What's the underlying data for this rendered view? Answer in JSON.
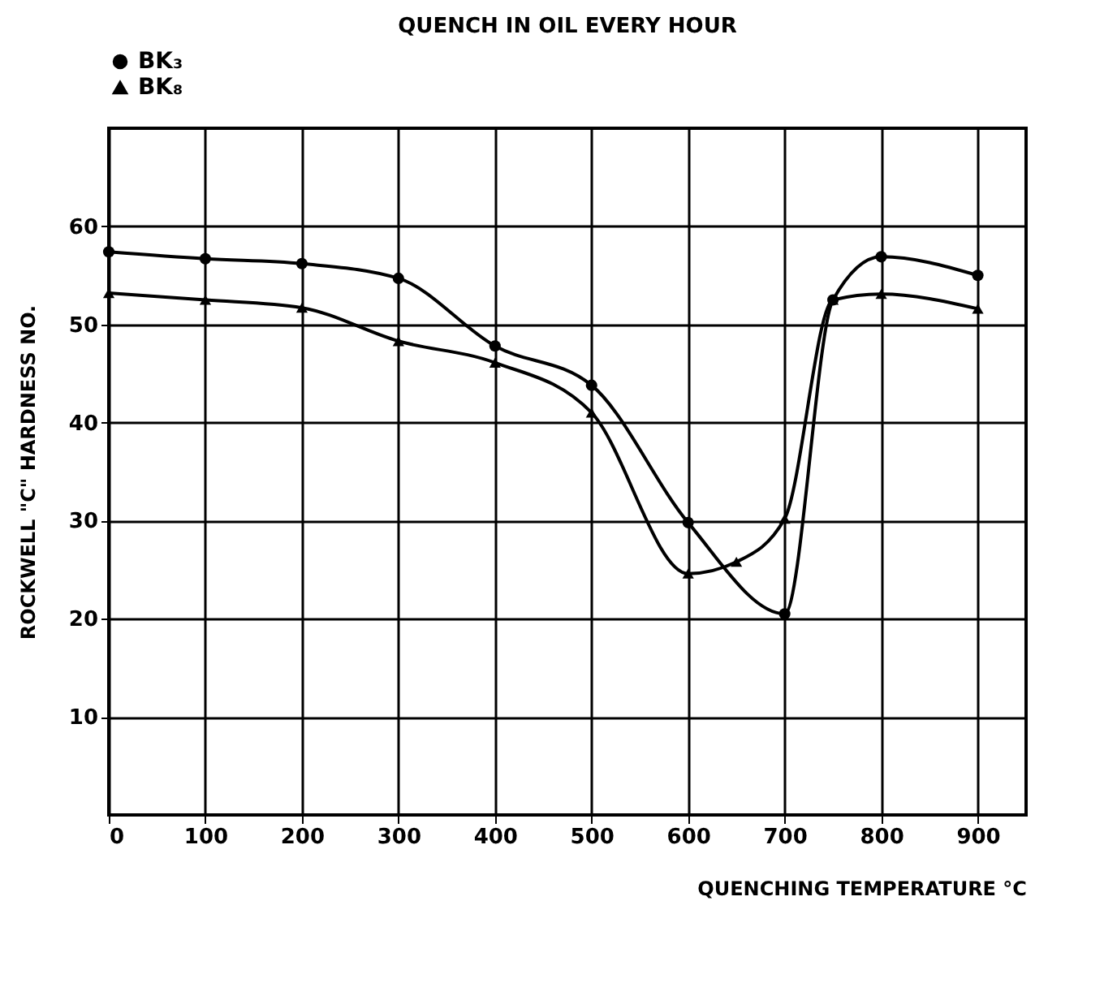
{
  "chart_data": {
    "type": "line",
    "title": "QUENCH IN OIL EVERY HOUR",
    "xlabel": "QUENCHING TEMPERATURE °C",
    "ylabel": "ROCKWELL \"C\" HARDNESS NO.",
    "series": [
      {
        "name": "BK₃",
        "color": "#000000",
        "marker": "circle",
        "x": [
          0,
          100,
          200,
          300,
          400,
          500,
          600,
          700,
          750,
          800,
          900
        ],
        "values": [
          57.4,
          56.7,
          56.2,
          54.7,
          47.8,
          43.8,
          29.8,
          20.5,
          52.5,
          56.9,
          55.0
        ]
      },
      {
        "name": "BK₈",
        "color": "#000000",
        "marker": "triangle",
        "x": [
          0,
          100,
          200,
          300,
          400,
          500,
          600,
          650,
          700,
          750,
          800,
          900
        ],
        "values": [
          53.2,
          52.5,
          51.7,
          48.3,
          46.1,
          41.0,
          24.6,
          25.8,
          30.2,
          52.5,
          53.1,
          51.6
        ]
      }
    ],
    "xlim": [
      0,
      950
    ],
    "xticks": [
      0,
      100,
      200,
      300,
      400,
      500,
      600,
      700,
      800,
      900
    ],
    "ylim": [
      0,
      70
    ],
    "yticks": [
      10,
      20,
      30,
      40,
      50,
      60
    ],
    "grid": true,
    "legend": "top",
    "line_style": "solid"
  }
}
